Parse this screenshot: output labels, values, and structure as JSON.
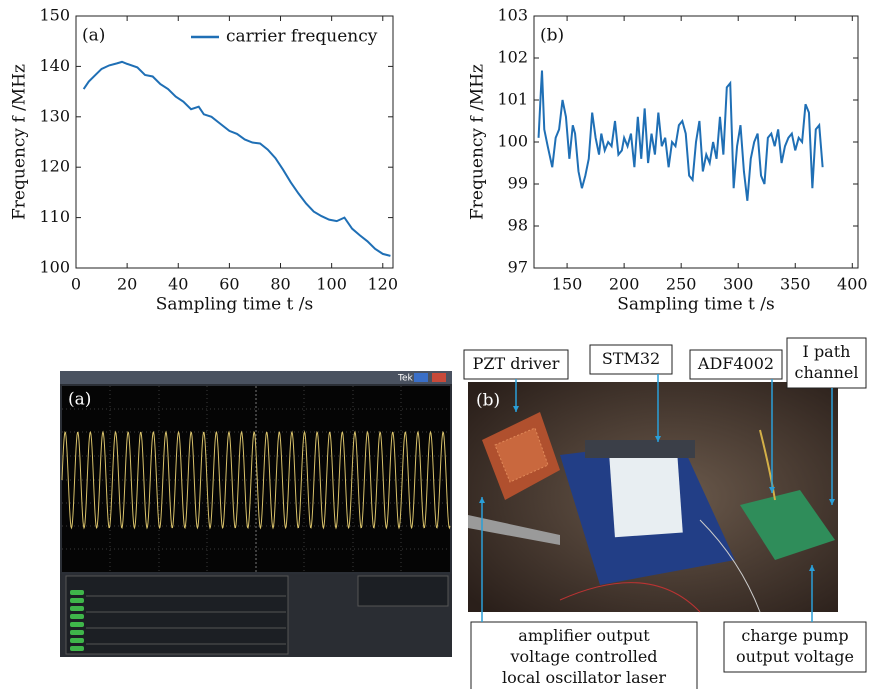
{
  "chart_data": [
    {
      "type": "line",
      "panel_label": "(a)",
      "xlabel": "Sampling time t /s",
      "ylabel": "Frequency f /MHz",
      "x": [
        3,
        5,
        8,
        10,
        13,
        16,
        18,
        20,
        24,
        27,
        30,
        33,
        36,
        39,
        42,
        45,
        48,
        50,
        53,
        56,
        60,
        63,
        66,
        69,
        72,
        75,
        78,
        81,
        84,
        87,
        90,
        93,
        96,
        99,
        102,
        105,
        108,
        111,
        114,
        117,
        120,
        123
      ],
      "series": [
        {
          "name": "carrier frequency",
          "color": "#1f6fb5",
          "values": [
            135.5,
            137,
            138.5,
            139.5,
            140.2,
            140.6,
            140.9,
            140.5,
            139.8,
            138.3,
            138,
            136.5,
            135.5,
            134,
            133,
            131.5,
            132,
            130.5,
            130,
            128.8,
            127.2,
            126.6,
            125.5,
            124.9,
            124.7,
            123.5,
            121.8,
            119.5,
            117,
            114.8,
            112.8,
            111.2,
            110.3,
            109.6,
            109.3,
            110,
            107.8,
            106.5,
            105.3,
            103.8,
            102.8,
            102.4
          ]
        }
      ],
      "xlim": [
        0,
        124
      ],
      "ylim": [
        100,
        150
      ],
      "xticks": [
        0,
        20,
        40,
        60,
        80,
        100,
        120
      ],
      "yticks": [
        100,
        110,
        120,
        130,
        140,
        150
      ],
      "legend": "upper right"
    },
    {
      "type": "line",
      "panel_label": "(b)",
      "xlabel": "Sampling time t /s",
      "ylabel": "Frequency f /MHz",
      "x": [
        125,
        127,
        128,
        130,
        133,
        137,
        140,
        143,
        146,
        149,
        152,
        155,
        157,
        160,
        163,
        166,
        169,
        172,
        175,
        178,
        180,
        183,
        186,
        189,
        192,
        195,
        198,
        200,
        203,
        206,
        209,
        212,
        215,
        218,
        221,
        224,
        227,
        230,
        233,
        236,
        239,
        242,
        245,
        248,
        251,
        254,
        257,
        260,
        263,
        266,
        269,
        272,
        275,
        278,
        281,
        284,
        287,
        290,
        293,
        296,
        299,
        302,
        305,
        308,
        311,
        314,
        317,
        320,
        323,
        326,
        329,
        332,
        335,
        338,
        341,
        344,
        347,
        350,
        353,
        356,
        359,
        362,
        365,
        368,
        371,
        374
      ],
      "series": [
        {
          "color": "#1f6fb5",
          "values": [
            100.1,
            101.2,
            101.7,
            100.3,
            99.9,
            99.4,
            100.1,
            100.3,
            101.0,
            100.6,
            99.6,
            100.4,
            100.2,
            99.3,
            98.9,
            99.2,
            99.6,
            100.7,
            100.1,
            99.7,
            100.2,
            99.8,
            100.0,
            99.9,
            100.5,
            99.7,
            99.8,
            100.1,
            99.9,
            100.2,
            99.4,
            100.6,
            99.6,
            100.8,
            99.5,
            100.2,
            99.7,
            100.7,
            99.9,
            100.1,
            99.4,
            100.0,
            99.9,
            100.4,
            100.5,
            100.2,
            99.2,
            99.1,
            100.0,
            100.5,
            99.3,
            99.7,
            99.5,
            100.0,
            99.6,
            100.6,
            99.7,
            101.3,
            101.4,
            98.9,
            99.9,
            100.4,
            99.3,
            98.6,
            99.6,
            100.0,
            100.2,
            99.2,
            99.0,
            100.1,
            100.2,
            99.9,
            100.3,
            99.5,
            99.9,
            100.1,
            100.2,
            99.8,
            100.1,
            100.0,
            100.9,
            100.7,
            98.9,
            100.3,
            100.4,
            99.4
          ]
        }
      ],
      "xlim": [
        121,
        405
      ],
      "ylim": [
        97,
        103
      ],
      "xticks": [
        150,
        200,
        250,
        300,
        350,
        400
      ],
      "yticks": [
        97,
        98,
        99,
        100,
        101,
        102,
        103
      ]
    }
  ],
  "photos": {
    "a": {
      "label": "(a)",
      "brand": "Tek"
    },
    "b": {
      "label": "(b)",
      "callouts": [
        {
          "lines": [
            "PZT driver"
          ]
        },
        {
          "lines": [
            "STM32"
          ]
        },
        {
          "lines": [
            "ADF4002"
          ]
        },
        {
          "lines": [
            "I path",
            "channel"
          ]
        },
        {
          "lines": [
            "amplifier output",
            "voltage controlled",
            "local oscillator laser"
          ]
        },
        {
          "lines": [
            "charge pump",
            "output voltage"
          ]
        }
      ]
    }
  }
}
